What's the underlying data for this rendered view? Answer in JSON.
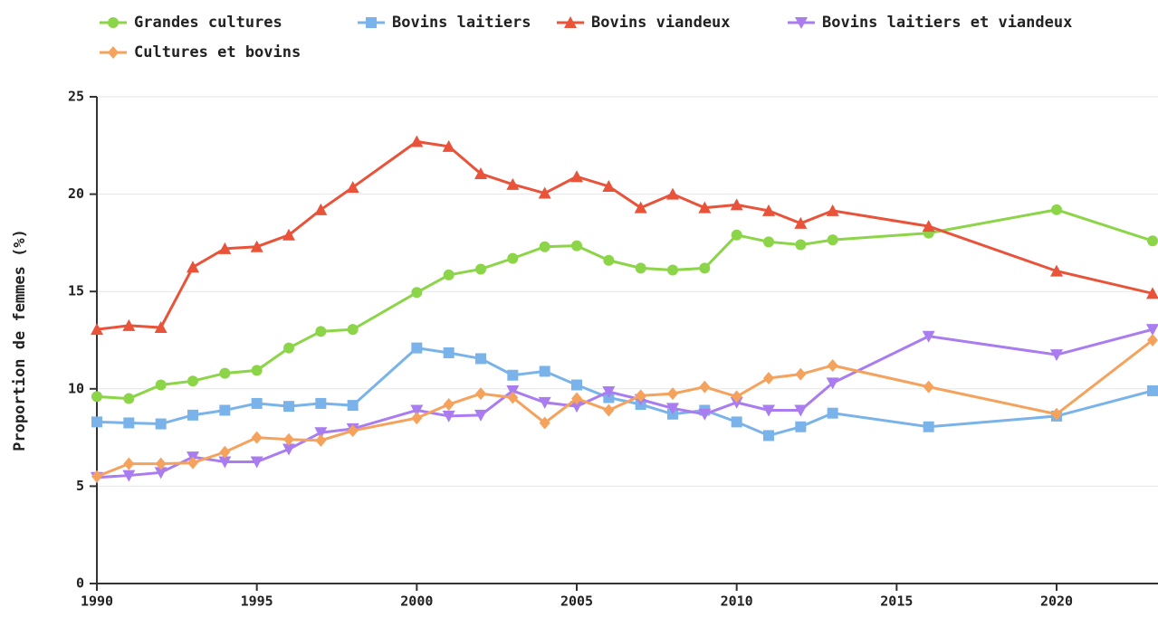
{
  "chart_data": {
    "type": "line",
    "ylabel": "Proportion de femmes (%)",
    "x": [
      1990,
      1991,
      1992,
      1993,
      1994,
      1995,
      1996,
      1997,
      1998,
      2000,
      2001,
      2002,
      2003,
      2004,
      2005,
      2006,
      2007,
      2008,
      2009,
      2010,
      2011,
      2012,
      2013,
      2016,
      2020,
      2023
    ],
    "series": [
      {
        "name": "Grandes cultures",
        "color": "#8cd448",
        "marker": "circle",
        "values": [
          9.6,
          9.5,
          10.2,
          10.4,
          10.8,
          10.95,
          12.1,
          12.95,
          13.05,
          14.95,
          15.85,
          16.15,
          16.7,
          17.3,
          17.35,
          16.6,
          16.2,
          16.1,
          16.2,
          17.9,
          17.55,
          17.4,
          17.65,
          18.0,
          19.2,
          17.6
        ]
      },
      {
        "name": "Bovins laitiers",
        "color": "#7ab3ea",
        "marker": "square",
        "values": [
          8.3,
          8.25,
          8.2,
          8.65,
          8.9,
          9.25,
          9.1,
          9.25,
          9.15,
          12.1,
          11.85,
          11.55,
          10.7,
          10.9,
          10.2,
          9.55,
          9.2,
          8.7,
          8.9,
          8.3,
          7.6,
          8.05,
          8.75,
          8.05,
          8.6,
          9.9
        ]
      },
      {
        "name": "Bovins viandeux",
        "color": "#e8533a",
        "marker": "triangle",
        "values": [
          13.05,
          13.25,
          13.15,
          16.25,
          17.2,
          17.3,
          17.9,
          19.2,
          20.35,
          22.7,
          22.45,
          21.05,
          20.5,
          20.05,
          20.9,
          20.4,
          19.3,
          20.0,
          19.3,
          19.45,
          19.15,
          18.5,
          19.15,
          18.35,
          16.05,
          14.9
        ]
      },
      {
        "name": "Bovins laitiers et viandeux",
        "color": "#a97cf0",
        "marker": "triangle-down",
        "values": [
          5.45,
          5.55,
          5.7,
          6.5,
          6.25,
          6.25,
          6.9,
          7.75,
          7.95,
          8.9,
          8.6,
          8.65,
          9.9,
          9.3,
          9.1,
          9.85,
          9.45,
          9.0,
          8.7,
          9.3,
          8.9,
          8.9,
          10.3,
          12.7,
          11.75,
          13.05
        ]
      },
      {
        "name": "Cultures et bovins",
        "color": "#f5a25d",
        "marker": "diamond",
        "values": [
          5.5,
          6.15,
          6.15,
          6.2,
          6.75,
          7.5,
          7.4,
          7.35,
          7.85,
          8.5,
          9.2,
          9.75,
          9.55,
          8.25,
          9.5,
          8.9,
          9.65,
          9.75,
          10.1,
          9.6,
          10.55,
          10.75,
          11.2,
          10.1,
          8.7,
          12.5
        ]
      }
    ],
    "xlim": [
      1990,
      2023
    ],
    "xticks": [
      1990,
      1995,
      2000,
      2005,
      2010,
      2015,
      2020
    ],
    "ylim": [
      0,
      25
    ],
    "yticks": [
      0,
      5,
      10,
      15,
      20,
      25
    ],
    "grid": true,
    "legend": "top"
  }
}
